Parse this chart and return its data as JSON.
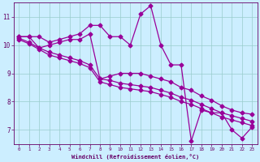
{
  "bg_color": "#cceeff",
  "line_color": "#990099",
  "grid_color": "#99cccc",
  "xlabel": "Windchill (Refroidissement éolien,°C)",
  "xlabel_color": "#660066",
  "tick_color": "#660066",
  "ylim": [
    6.5,
    11.5
  ],
  "xlim": [
    -0.5,
    23.5
  ],
  "yticks": [
    7,
    8,
    9,
    10,
    11
  ],
  "xticks": [
    0,
    1,
    2,
    3,
    4,
    5,
    6,
    7,
    8,
    9,
    10,
    11,
    12,
    13,
    14,
    15,
    16,
    17,
    18,
    19,
    20,
    21,
    22,
    23
  ],
  "series1_x": [
    0,
    1,
    2,
    3,
    4,
    5,
    6,
    7,
    8,
    9,
    10,
    11,
    12,
    13,
    14,
    15,
    16,
    17,
    18,
    19,
    20,
    21,
    22,
    23
  ],
  "series1_y": [
    10.3,
    10.3,
    10.3,
    10.1,
    10.2,
    10.3,
    10.4,
    10.7,
    10.7,
    10.3,
    10.3,
    10.0,
    11.1,
    11.4,
    10.0,
    9.3,
    9.3,
    6.6,
    7.7,
    7.6,
    7.6,
    7.0,
    6.7,
    7.1
  ],
  "series2_x": [
    0,
    1,
    2,
    3,
    4,
    5,
    6,
    7,
    8,
    9,
    10,
    11,
    12,
    13,
    14,
    15,
    16,
    17,
    18,
    19,
    20,
    21,
    22,
    23
  ],
  "series2_y": [
    10.3,
    10.3,
    9.9,
    10.0,
    10.1,
    10.2,
    10.2,
    10.4,
    8.8,
    8.9,
    9.0,
    9.0,
    9.0,
    8.9,
    8.8,
    8.7,
    8.5,
    8.4,
    8.2,
    8.05,
    7.85,
    7.7,
    7.6,
    7.55
  ],
  "series3_x": [
    0,
    1,
    2,
    3,
    4,
    5,
    6,
    7,
    8,
    9,
    10,
    11,
    12,
    13,
    14,
    15,
    16,
    17,
    18,
    19,
    20,
    21,
    22,
    23
  ],
  "series3_y": [
    10.25,
    10.1,
    9.9,
    9.75,
    9.65,
    9.55,
    9.45,
    9.3,
    8.8,
    8.75,
    8.65,
    8.6,
    8.55,
    8.5,
    8.4,
    8.3,
    8.15,
    8.05,
    7.9,
    7.75,
    7.6,
    7.5,
    7.4,
    7.3
  ],
  "series4_x": [
    0,
    1,
    2,
    3,
    4,
    5,
    6,
    7,
    8,
    9,
    10,
    11,
    12,
    13,
    14,
    15,
    16,
    17,
    18,
    19,
    20,
    21,
    22,
    23
  ],
  "series4_y": [
    10.2,
    10.05,
    9.85,
    9.65,
    9.55,
    9.45,
    9.35,
    9.2,
    8.7,
    8.6,
    8.5,
    8.45,
    8.4,
    8.35,
    8.25,
    8.15,
    8.0,
    7.9,
    7.75,
    7.6,
    7.45,
    7.35,
    7.25,
    7.15
  ]
}
